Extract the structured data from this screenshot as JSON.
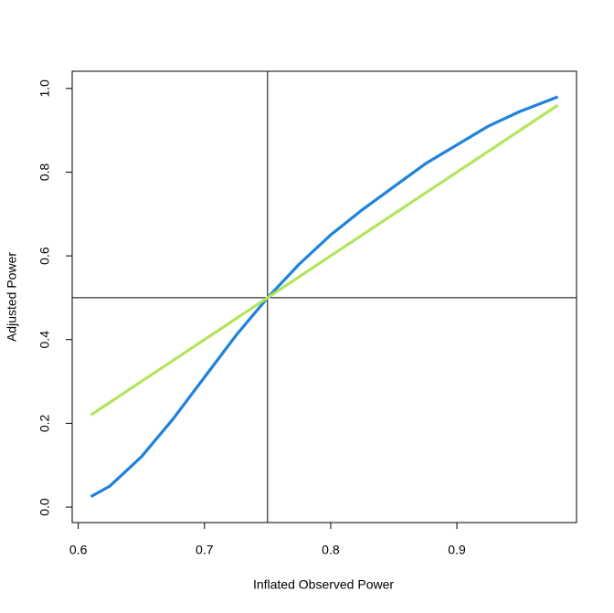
{
  "chart_data": {
    "type": "line",
    "x_label": "Inflated Observed Power",
    "y_label": "Adjusted Power",
    "x": [
      0.61,
      0.625,
      0.65,
      0.675,
      0.7,
      0.725,
      0.75,
      0.775,
      0.8,
      0.825,
      0.85,
      0.875,
      0.9,
      0.925,
      0.95,
      0.98
    ],
    "series": [
      {
        "color": "#1f82dc",
        "values": [
          0.025,
          0.05,
          0.12,
          0.21,
          0.31,
          0.41,
          0.5,
          0.58,
          0.65,
          0.71,
          0.765,
          0.82,
          0.865,
          0.91,
          0.945,
          0.98
        ]
      },
      {
        "color": "#b3e55e",
        "values": [
          0.22,
          0.25,
          0.3,
          0.35,
          0.4,
          0.45,
          0.5,
          0.55,
          0.6,
          0.65,
          0.7,
          0.75,
          0.8,
          0.85,
          0.9,
          0.96
        ]
      }
    ],
    "xlim": [
      0.5952,
      0.9948
    ],
    "ylim": [
      -0.037,
      1.041
    ],
    "xticks": [
      0.6,
      0.7,
      0.8,
      0.9
    ],
    "yticks": [
      {
        "value": 0,
        "label": "0.0"
      },
      0.2,
      0.4,
      0.6,
      0.8,
      {
        "value": 1,
        "label": "1.0"
      }
    ],
    "vlines": [
      0.75
    ],
    "hlines": [
      0.5
    ]
  }
}
